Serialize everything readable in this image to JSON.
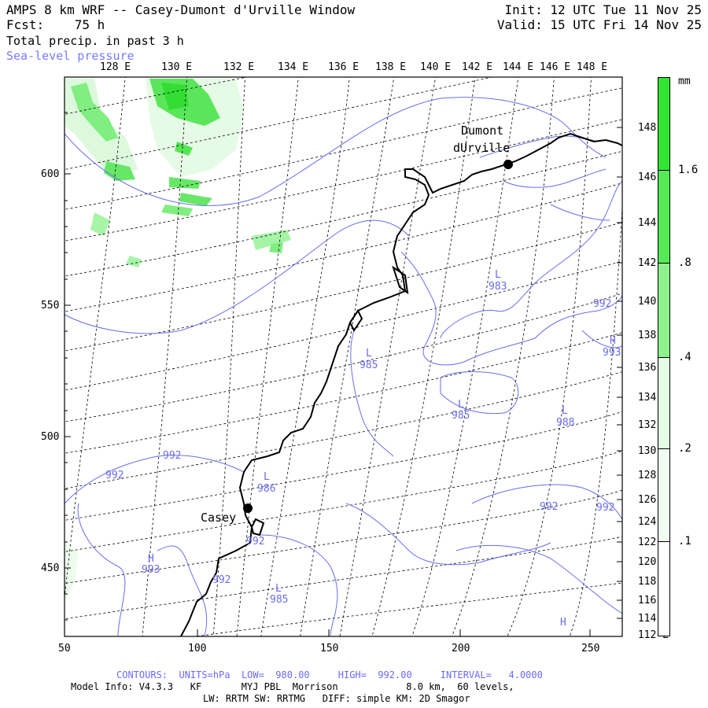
{
  "header": {
    "line1_left": "AMPS 8 km WRF -- Casey-Dumont d'Urville Window",
    "line2_left": "Fcst:    75 h",
    "line3_left": "Total precip. in past 3 h",
    "line4_left": "Sea-level pressure",
    "line1_right": "Init: 12 UTC Tue 11 Nov 25",
    "line2_right": "Valid: 15 UTC Fri 14 Nov 25"
  },
  "top_longitudes": [
    "128 E",
    "130 E",
    "132 E",
    "134 E",
    "136 E",
    "138 E",
    "140 E",
    "142 E",
    "144 E",
    "146 E",
    "148 E"
  ],
  "right_longitudes": [
    "148 E",
    "146 E",
    "144 E",
    "142 E",
    "140 E",
    "138 E",
    "136 E",
    "134 E",
    "132 E",
    "130 E",
    "128 E",
    "126 E",
    "124 E",
    "122 E",
    "120 E",
    "118 E",
    "116 E",
    "114 E",
    "112 E"
  ],
  "y_ticks": [
    "600",
    "550",
    "500",
    "450"
  ],
  "x_ticks": [
    "50",
    "100",
    "150",
    "200",
    "250"
  ],
  "colorbar": {
    "unit": "mm",
    "ticks": [
      "1.6",
      ".8",
      ".4",
      ".2",
      ".1"
    ],
    "colors": [
      "#33e633",
      "#66ee66",
      "#a6f5a6",
      "#d6fad6",
      "#f0fdf0"
    ]
  },
  "stations": [
    {
      "name_line1": "Dumont",
      "name_line2": "dUrville"
    },
    {
      "name_line1": "Casey"
    }
  ],
  "pressure_labels": [
    {
      "text": "L",
      "value": "983"
    },
    {
      "text": "L",
      "value": "985"
    },
    {
      "text": "L",
      "value": "985"
    },
    {
      "text": "L",
      "value": "988"
    },
    {
      "text": "L",
      "value": "986"
    },
    {
      "text": "L",
      "value": "985"
    },
    {
      "text": "H",
      "value": "993"
    },
    {
      "text": "H",
      "value": "993"
    },
    {
      "text": "H",
      "value": ""
    },
    {
      "text": "",
      "value": "992"
    },
    {
      "text": "",
      "value": "992"
    },
    {
      "text": "",
      "value": "992"
    },
    {
      "text": "",
      "value": "992"
    },
    {
      "text": "",
      "value": "992"
    },
    {
      "text": "",
      "value": "992"
    },
    {
      "text": "",
      "value": "992"
    }
  ],
  "footer": {
    "line1": "CONTOURS:  UNITS=hPa  LOW=  980.00     HIGH=  992.00     INTERVAL=   4.0000",
    "line2": "Model Info: V4.3.3   KF       MYJ PBL  Morrison            8.0 km,  60 levels,",
    "line3": "LW: RRTM SW: RRTMG   DIFF: simple KM: 2D Smagor"
  },
  "colors": {
    "contour": "#6b6bf0",
    "precip_strong": "#33e633",
    "precip_light": "#a6f5a6"
  }
}
